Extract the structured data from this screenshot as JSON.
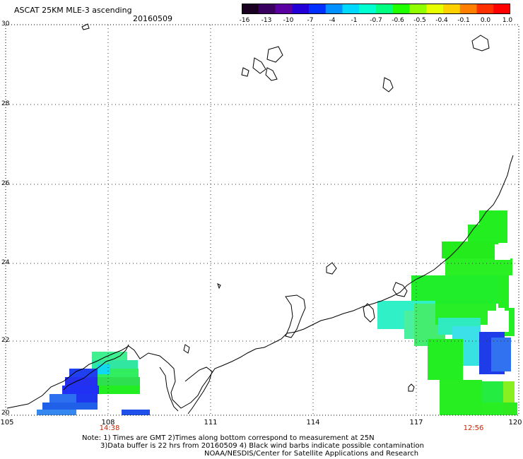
{
  "header": {
    "title": "ASCAT 25KM MLE-3 ascending",
    "date": "20160509"
  },
  "colorbar": {
    "labels": [
      "-16",
      "-13",
      "-10",
      "-7",
      "-4",
      "-1",
      "-0.7",
      "-0.6",
      "-0.5",
      "-0.4",
      "-0.1",
      "0.0",
      "1.0"
    ],
    "colors": [
      "#1a0020",
      "#3a0060",
      "#5a00a0",
      "#2400d8",
      "#0030ff",
      "#0090ff",
      "#00d8ff",
      "#00ffd0",
      "#00ff80",
      "#20ff00",
      "#90ff00",
      "#e8ff00",
      "#ffd000",
      "#ff8000",
      "#ff3000",
      "#ff0000"
    ]
  },
  "map": {
    "lon_ticks": [
      "105",
      "108",
      "111",
      "114",
      "117",
      "120"
    ],
    "lat_ticks": [
      "30",
      "28",
      "26",
      "24",
      "22",
      "20"
    ],
    "lon_range": [
      105,
      120
    ],
    "lat_range": [
      20,
      30
    ],
    "pass_times": [
      "14:38",
      "12:56"
    ]
  },
  "notes": {
    "line1": "Note: 1) Times are GMT 2)Times along bottom correspond to measurement at 25N",
    "line2": "3)Data buffer is 22 hrs from 20160509 4) Black wind barbs indicate possible contamination",
    "line3": "NOAA/NESDIS/Center for Satellite Applications and Research"
  }
}
